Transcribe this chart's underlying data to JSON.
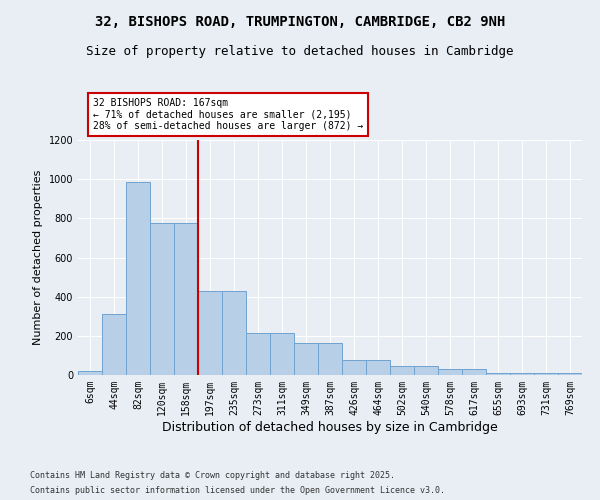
{
  "title1": "32, BISHOPS ROAD, TRUMPINGTON, CAMBRIDGE, CB2 9NH",
  "title2": "Size of property relative to detached houses in Cambridge",
  "xlabel": "Distribution of detached houses by size in Cambridge",
  "ylabel": "Number of detached properties",
  "categories": [
    "6sqm",
    "44sqm",
    "82sqm",
    "120sqm",
    "158sqm",
    "197sqm",
    "235sqm",
    "273sqm",
    "311sqm",
    "349sqm",
    "387sqm",
    "426sqm",
    "464sqm",
    "502sqm",
    "540sqm",
    "578sqm",
    "617sqm",
    "655sqm",
    "693sqm",
    "731sqm",
    "769sqm"
  ],
  "values": [
    22,
    310,
    985,
    775,
    775,
    430,
    430,
    215,
    215,
    165,
    165,
    75,
    75,
    47,
    47,
    30,
    30,
    12,
    12,
    8,
    8
  ],
  "bar_color": "#b8cfe8",
  "bar_edgecolor": "#6fa3d0",
  "vline_x": 4.5,
  "vline_color": "#cc0000",
  "annotation_line1": "32 BISHOPS ROAD: 167sqm",
  "annotation_line2": "← 71% of detached houses are smaller (2,195)",
  "annotation_line3": "28% of semi-detached houses are larger (872) →",
  "annotation_box_color": "#ffffff",
  "annotation_box_edgecolor": "#cc0000",
  "ylim": [
    0,
    1200
  ],
  "yticks": [
    0,
    200,
    400,
    600,
    800,
    1000,
    1200
  ],
  "bg_color": "#e8eef4",
  "footer1": "Contains HM Land Registry data © Crown copyright and database right 2025.",
  "footer2": "Contains public sector information licensed under the Open Government Licence v3.0.",
  "title_fontsize": 10,
  "subtitle_fontsize": 9,
  "tick_fontsize": 7,
  "ylabel_fontsize": 8,
  "xlabel_fontsize": 9,
  "annotation_fontsize": 7
}
